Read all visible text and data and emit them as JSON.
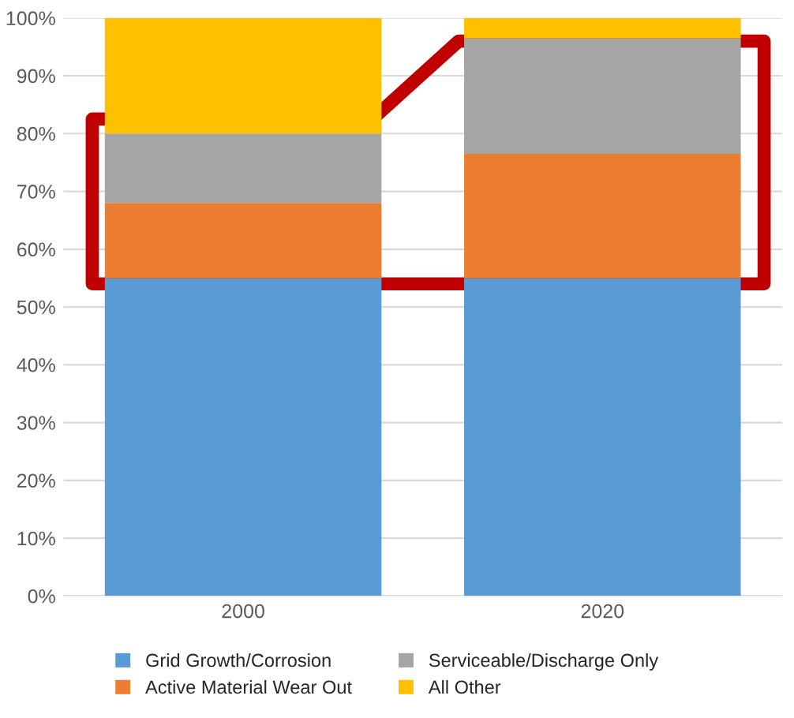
{
  "chart_data": {
    "type": "bar",
    "stacked": true,
    "categories": [
      "2000",
      "2020"
    ],
    "series": [
      {
        "name": "Grid Growth/Corrosion",
        "color": "#5b9bd5",
        "values": [
          55,
          55
        ]
      },
      {
        "name": "Active Material Wear Out",
        "color": "#ed7d31",
        "values": [
          13,
          21.5
        ]
      },
      {
        "name": "Serviceable/Discharge Only",
        "color": "#a5a5a5",
        "values": [
          12,
          20
        ]
      },
      {
        "name": "All Other",
        "color": "#ffc000",
        "values": [
          20,
          3.5
        ]
      }
    ],
    "ylim": [
      0,
      100
    ],
    "yticks": [
      {
        "value": 0,
        "label": "0%"
      },
      {
        "value": 10,
        "label": "10%"
      },
      {
        "value": 20,
        "label": "20%"
      },
      {
        "value": 30,
        "label": "30%"
      },
      {
        "value": 40,
        "label": "40%"
      },
      {
        "value": 50,
        "label": "50%"
      },
      {
        "value": 60,
        "label": "60%"
      },
      {
        "value": 70,
        "label": "70%"
      },
      {
        "value": 80,
        "label": "80%"
      },
      {
        "value": 90,
        "label": "90%"
      },
      {
        "value": 100,
        "label": "100%"
      }
    ],
    "grid": "y",
    "legend": "bottom"
  }
}
